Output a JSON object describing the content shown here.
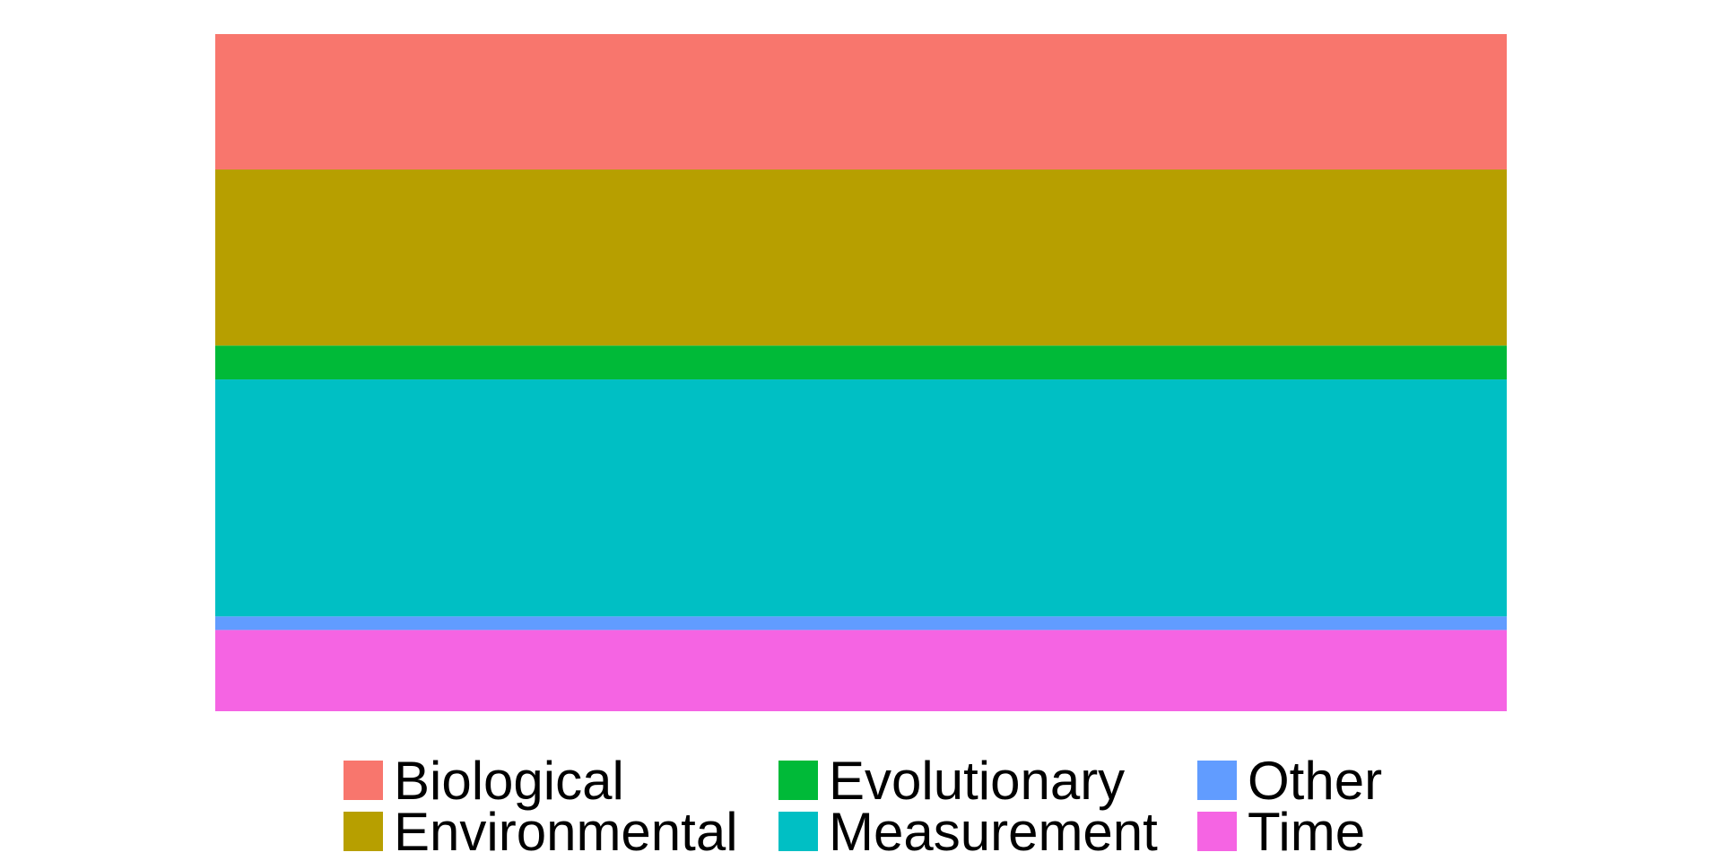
{
  "chart_data": {
    "type": "bar",
    "stacked": true,
    "normalized": true,
    "categories": [
      ""
    ],
    "xlabel": "",
    "ylabel": "",
    "ylim": [
      0,
      1
    ],
    "grid": false,
    "legend_placement": "bottom",
    "series": [
      {
        "name": "Biological",
        "values": [
          0.2
        ],
        "color": "#F8766D"
      },
      {
        "name": "Environmental",
        "values": [
          0.26
        ],
        "color": "#B79F00"
      },
      {
        "name": "Evolutionary",
        "values": [
          0.05
        ],
        "color": "#00BA38"
      },
      {
        "name": "Measurement",
        "values": [
          0.35
        ],
        "color": "#00BFC4"
      },
      {
        "name": "Other",
        "values": [
          0.02
        ],
        "color": "#619CFF"
      },
      {
        "name": "Time",
        "values": [
          0.12
        ],
        "color": "#F564E3"
      }
    ]
  }
}
